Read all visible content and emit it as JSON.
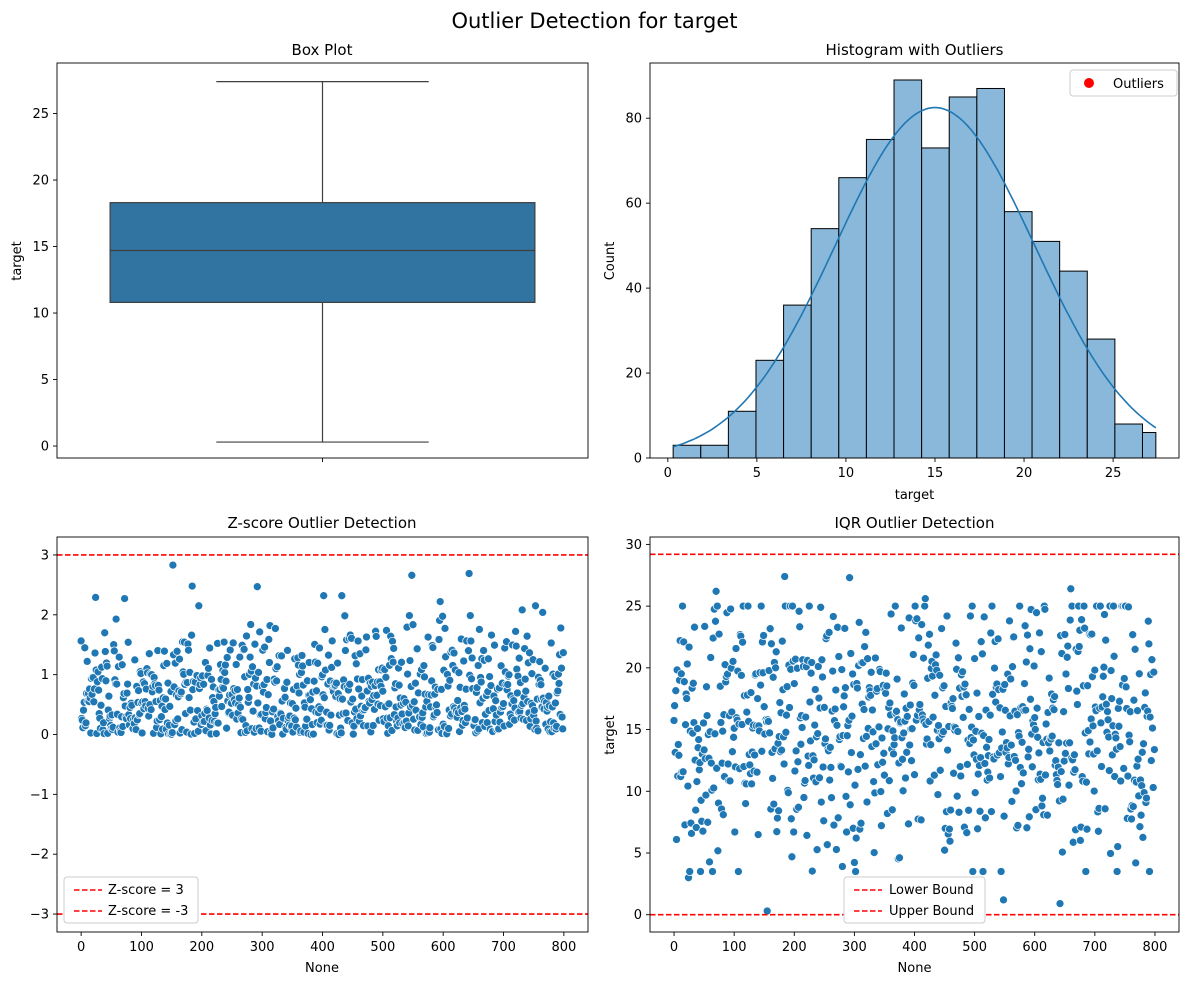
{
  "figure": {
    "suptitle": "Outlier Detection for target"
  },
  "chart_data": [
    {
      "type": "box",
      "title": "Box Plot",
      "xlabel": "",
      "ylabel": "target",
      "ylim": [
        -0.9,
        28.8
      ],
      "yticks": [
        0,
        5,
        10,
        15,
        20,
        25
      ],
      "stats": {
        "min": 0.3,
        "q1": 10.8,
        "median": 14.7,
        "q3": 18.3,
        "max": 27.4
      },
      "color": "#3274a1",
      "outliers": []
    },
    {
      "type": "bar",
      "title": "Histogram with Outliers",
      "xlabel": "target",
      "ylabel": "Count",
      "xlim": [
        -1.0,
        28.7
      ],
      "ylim": [
        0,
        93
      ],
      "xticks": [
        0,
        5,
        10,
        15,
        20,
        25
      ],
      "yticks": [
        0,
        20,
        40,
        60,
        80
      ],
      "bin_edges": [
        0.3,
        1.85,
        3.4,
        4.95,
        6.5,
        8.05,
        9.6,
        11.15,
        12.7,
        14.25,
        15.8,
        17.35,
        18.9,
        20.45,
        22.0,
        23.55,
        25.1,
        26.65,
        27.4
      ],
      "counts": [
        3,
        3,
        11,
        23,
        36,
        54,
        66,
        75,
        89,
        73,
        85,
        87,
        58,
        51,
        44,
        28,
        8,
        6
      ],
      "kde": {
        "mean": 15.0,
        "peak": 82.5,
        "sd": 5.6
      },
      "bar_color": "#89b8da",
      "line_color": "#1f77b4",
      "legend": {
        "position": "upper right",
        "entries": [
          {
            "label": "Outliers",
            "color": "#ff0000"
          }
        ]
      },
      "outliers": []
    },
    {
      "type": "scatter",
      "title": "Z-score Outlier Detection",
      "xlabel": "None",
      "ylabel": "",
      "xlim": [
        -40,
        840
      ],
      "ylim": [
        -3.3,
        3.3
      ],
      "xticks": [
        0,
        100,
        200,
        300,
        400,
        500,
        600,
        700,
        800
      ],
      "yticks": [
        -3,
        -2,
        -1,
        0,
        1,
        2,
        3
      ],
      "n_points": 800,
      "y_range_of_points": [
        0.0,
        2.83
      ],
      "point_color": "#1f77b4",
      "notable_points": [
        {
          "x": 152,
          "y": 2.83
        },
        {
          "x": 184,
          "y": 2.48
        },
        {
          "x": 292,
          "y": 2.47
        },
        {
          "x": 548,
          "y": 2.66
        },
        {
          "x": 643,
          "y": 2.69
        },
        {
          "x": 24,
          "y": 2.29
        },
        {
          "x": 72,
          "y": 2.27
        },
        {
          "x": 402,
          "y": 2.32
        },
        {
          "x": 432,
          "y": 2.32
        },
        {
          "x": 595,
          "y": 2.22
        },
        {
          "x": 765,
          "y": 2.04
        },
        {
          "x": 795,
          "y": 1.78
        }
      ],
      "hlines": [
        {
          "y": 3,
          "label": "Z-score = 3",
          "color": "#ff0000"
        },
        {
          "y": -3,
          "label": "Z-score = -3",
          "color": "#ff0000"
        }
      ],
      "legend": {
        "position": "lower left",
        "entries": [
          {
            "label": "Z-score = 3",
            "color": "#ff0000"
          },
          {
            "label": "Z-score = -3",
            "color": "#ff0000"
          }
        ]
      }
    },
    {
      "type": "scatter",
      "title": "IQR Outlier Detection",
      "xlabel": "None",
      "ylabel": "target",
      "xlim": [
        -40,
        840
      ],
      "ylim": [
        -1.4,
        30.6
      ],
      "xticks": [
        0,
        100,
        200,
        300,
        400,
        500,
        600,
        700,
        800
      ],
      "yticks": [
        0,
        5,
        10,
        15,
        20,
        25,
        30
      ],
      "n_points": 800,
      "y_range_of_points": [
        0.3,
        27.4
      ],
      "point_color": "#1f77b4",
      "notable_points": [
        {
          "x": 184,
          "y": 27.4
        },
        {
          "x": 292,
          "y": 27.3
        },
        {
          "x": 70,
          "y": 26.2
        },
        {
          "x": 660,
          "y": 26.4
        },
        {
          "x": 418,
          "y": 25.6
        },
        {
          "x": 155,
          "y": 0.3
        },
        {
          "x": 642,
          "y": 0.9
        },
        {
          "x": 548,
          "y": 1.2
        },
        {
          "x": 24,
          "y": 3.0
        },
        {
          "x": 410,
          "y": 2.5
        },
        {
          "x": 432,
          "y": 2.6
        },
        {
          "x": 768,
          "y": 4.2
        }
      ],
      "hlines": [
        {
          "y": -0.0,
          "label": "Lower Bound",
          "color": "#ff0000"
        },
        {
          "y": 29.2,
          "label": "Upper Bound",
          "color": "#ff0000"
        }
      ],
      "legend": {
        "position": "lower center",
        "entries": [
          {
            "label": "Lower Bound",
            "color": "#ff0000"
          },
          {
            "label": "Upper Bound",
            "color": "#ff0000"
          }
        ]
      }
    }
  ]
}
